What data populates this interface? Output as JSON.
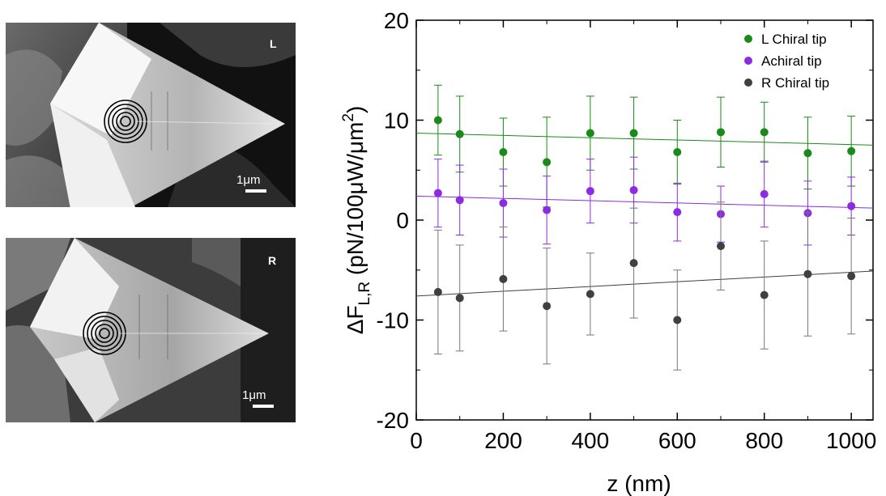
{
  "images": [
    {
      "label": "L",
      "scale_label": "1μm"
    },
    {
      "label": "R",
      "scale_label": "1μm"
    }
  ],
  "chart_data": {
    "type": "scatter",
    "title": "",
    "xlabel": "z (nm)",
    "ylabel_prefix": "ΔF",
    "ylabel_sub": "L,R",
    "ylabel_main": " (pN/100μW/μm",
    "ylabel_sup": "2",
    "ylabel_end": ")",
    "xlim": [
      0,
      1050
    ],
    "ylim": [
      -20,
      20
    ],
    "xticks": [
      0,
      200,
      400,
      600,
      800,
      1000
    ],
    "yticks": [
      -20,
      -10,
      0,
      10,
      20
    ],
    "grid": false,
    "legend_position": "top-right",
    "x": [
      50,
      100,
      200,
      300,
      400,
      500,
      600,
      700,
      800,
      900,
      1000
    ],
    "series": [
      {
        "name": "L Chiral tip",
        "color": "#1a8a1a",
        "y": [
          10.0,
          8.6,
          6.8,
          5.8,
          8.7,
          8.7,
          6.8,
          8.8,
          8.8,
          6.7,
          6.9
        ],
        "err": [
          3.5,
          3.8,
          3.4,
          4.5,
          3.7,
          3.6,
          3.2,
          3.5,
          3.0,
          3.6,
          3.5
        ],
        "fit": [
          8.7,
          7.5
        ]
      },
      {
        "name": "Achiral tip",
        "color": "#8c2be2",
        "y": [
          2.7,
          2.0,
          1.7,
          1.0,
          2.9,
          3.0,
          0.8,
          0.6,
          2.6,
          0.7,
          1.4
        ],
        "err": [
          3.4,
          3.5,
          3.4,
          3.4,
          3.2,
          3.3,
          2.9,
          2.8,
          3.3,
          3.2,
          2.9
        ],
        "fit": [
          2.4,
          1.2
        ]
      },
      {
        "name": "R Chiral tip",
        "color": "#404040",
        "y": [
          -7.2,
          -7.8,
          -5.9,
          -8.6,
          -7.4,
          -4.3,
          -10.0,
          -2.6,
          -7.5,
          -5.4,
          -5.6
        ],
        "err": [
          6.2,
          5.3,
          5.2,
          5.8,
          4.1,
          5.5,
          5.0,
          4.4,
          5.4,
          6.2,
          5.8
        ],
        "fit": [
          -7.6,
          -5.1
        ]
      }
    ]
  }
}
